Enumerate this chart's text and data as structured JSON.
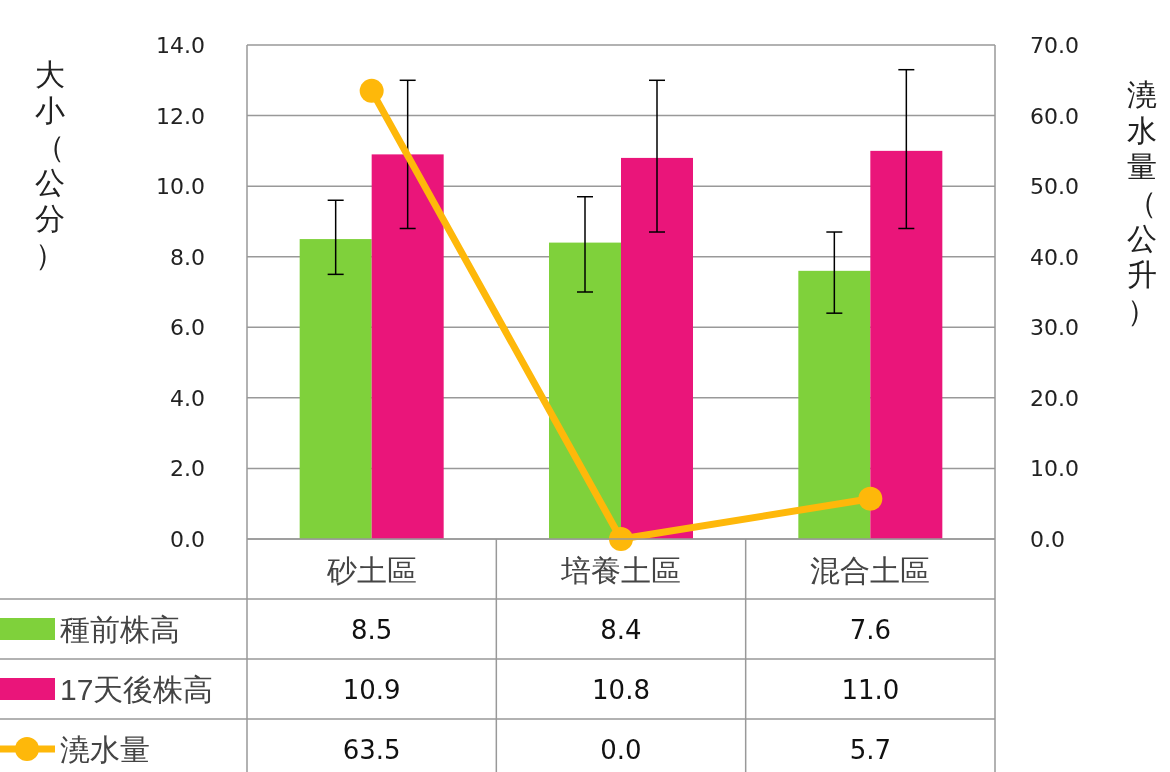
{
  "chart_data": {
    "type": "bar",
    "ylabel": "大小（公分）",
    "y2label": "澆水量（公升）",
    "categories": [
      "砂土區",
      "培養土區",
      "混合土區"
    ],
    "series": [
      {
        "name": "種前株高",
        "color": "#7fd13b",
        "values": [
          8.5,
          8.4,
          7.6
        ],
        "value_labels": [
          "8.5",
          "8.4",
          "7.6"
        ],
        "errors": [
          [
            7.5,
            9.6
          ],
          [
            7.0,
            9.7
          ],
          [
            6.4,
            8.7
          ]
        ]
      },
      {
        "name": "17天後株高",
        "color": "#ea157a",
        "values": [
          10.9,
          10.8,
          11.0
        ],
        "value_labels": [
          "10.9",
          "10.8",
          "11.0"
        ],
        "errors": [
          [
            8.8,
            13.0
          ],
          [
            8.7,
            13.0
          ],
          [
            8.8,
            13.3
          ]
        ]
      },
      {
        "name": "澆水量",
        "type": "line",
        "axis": "y2",
        "marker": "circle",
        "color": "#feb80a",
        "values": [
          63.5,
          0.0,
          5.7
        ],
        "value_labels": [
          "63.5",
          "0.0",
          "5.7"
        ]
      }
    ],
    "ylim": [
      0,
      14
    ],
    "yticks": [
      {
        "value": 0,
        "label": "0.0"
      },
      {
        "value": 2,
        "label": "2.0"
      },
      {
        "value": 4,
        "label": "4.0"
      },
      {
        "value": 6,
        "label": "6.0"
      },
      {
        "value": 8,
        "label": "8.0"
      },
      {
        "value": 10,
        "label": "10.0"
      },
      {
        "value": 12,
        "label": "12.0"
      },
      {
        "value": 14,
        "label": "14.0"
      }
    ],
    "y2lim": [
      0,
      70
    ],
    "y2ticks": [
      {
        "value": 0,
        "label": "0.0"
      },
      {
        "value": 10,
        "label": "10.0"
      },
      {
        "value": 20,
        "label": "20.0"
      },
      {
        "value": 30,
        "label": "30.0"
      },
      {
        "value": 40,
        "label": "40.0"
      },
      {
        "value": 50,
        "label": "50.0"
      },
      {
        "value": 60,
        "label": "60.0"
      },
      {
        "value": 70,
        "label": "70.0"
      }
    ],
    "grid": "y",
    "legend": "bottom"
  }
}
